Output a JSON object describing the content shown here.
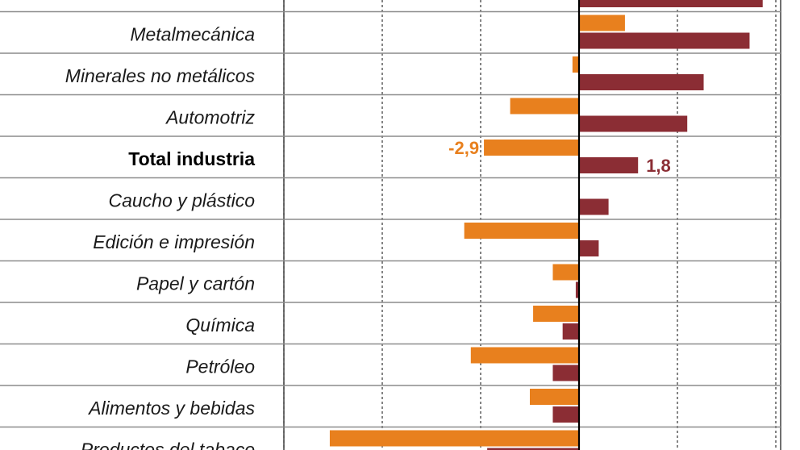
{
  "chart_data": {
    "type": "bar",
    "orientation": "horizontal",
    "categories": [
      "",
      "Metalmecánica",
      "Minerales no metálicos",
      "Automotriz",
      "Total industria",
      "Caucho y plástico",
      "Edición e impresión",
      "Papel y cartón",
      "Química",
      "Petróleo",
      "Alimentos y bebidas",
      "Productos del tabaco"
    ],
    "highlight_category": "Total industria",
    "series": [
      {
        "color": "#e8801e",
        "values": [
          null,
          1.4,
          -0.2,
          -2.1,
          -2.9,
          null,
          -3.5,
          -0.8,
          -1.4,
          -3.3,
          -1.5,
          -7.6
        ]
      },
      {
        "color": "#8b2d34",
        "values": [
          5.6,
          5.2,
          3.8,
          3.3,
          1.8,
          0.9,
          0.6,
          -0.1,
          -0.5,
          -0.8,
          -0.8,
          -2.8
        ]
      }
    ],
    "data_labels": [
      {
        "category": "Total industria",
        "series": 0,
        "text": "-2,9"
      },
      {
        "category": "Total industria",
        "series": 1,
        "text": "1,8"
      }
    ],
    "grid": true,
    "gridlines_at": [
      -9,
      -6,
      -3,
      0,
      3,
      6
    ],
    "xlim": [
      -9,
      6.2
    ]
  }
}
